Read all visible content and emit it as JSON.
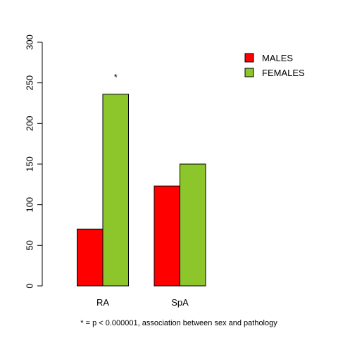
{
  "chart_data": {
    "type": "bar",
    "categories": [
      "RA",
      "SpA"
    ],
    "series": [
      {
        "name": "MALES",
        "color": "#ff0000",
        "values": [
          70,
          123
        ]
      },
      {
        "name": "FEMALES",
        "color": "#8dc62b",
        "values": [
          236,
          150
        ]
      }
    ],
    "ylim": [
      0,
      300
    ],
    "yticks": [
      0,
      50,
      100,
      150,
      200,
      250,
      300
    ],
    "grid": false,
    "legend_position": "top-right",
    "annotations": [
      {
        "category": "RA",
        "text": "*"
      }
    ],
    "footnote": "* = p < 0.000001, association between sex and pathology"
  }
}
